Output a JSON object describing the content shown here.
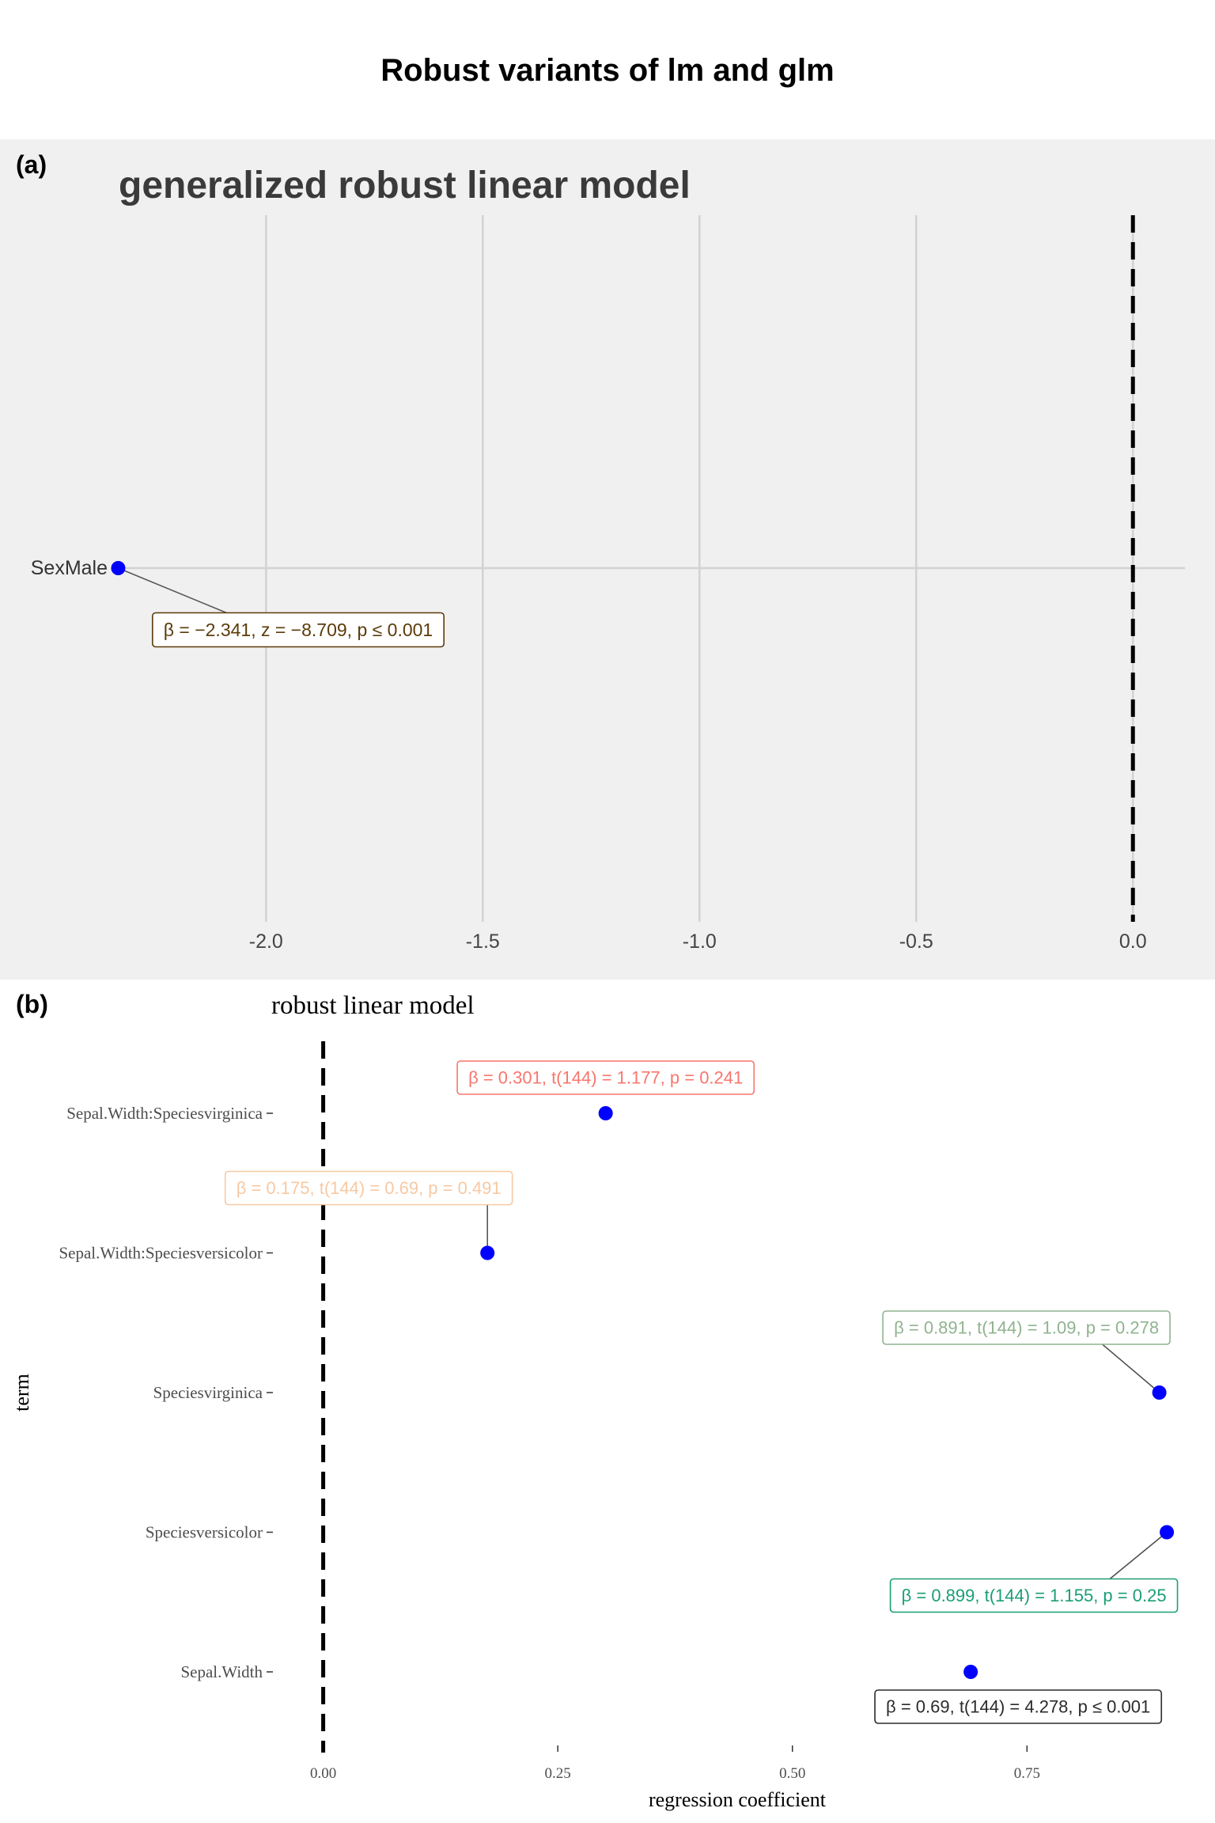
{
  "figure": {
    "title": "Robust variants of lm and glm"
  },
  "chart_data": [
    {
      "type": "scatter",
      "panel_tag": "(a)",
      "title": "generalized robust linear model",
      "xlabel": "",
      "ylabel": "",
      "xlim": [
        -2.34,
        0.12
      ],
      "x_ticks": [
        -2.0,
        -1.5,
        -1.0,
        -0.5,
        0.0
      ],
      "x_tick_labels": [
        "-2.0",
        "-1.5",
        "-1.0",
        "-0.5",
        "0.0"
      ],
      "reference_line": 0,
      "grid": true,
      "background": "#f0f0f0",
      "point_color": "#0000ff",
      "terms": [
        "SexMale"
      ],
      "points": [
        {
          "term": "SexMale",
          "estimate": -2.341,
          "label": "β = −2.341,  z = −8.709,  p ≤ 0.001",
          "label_color": "#5c3b0a"
        }
      ]
    },
    {
      "type": "scatter",
      "panel_tag": "(b)",
      "title": "robust linear model",
      "xlabel": "regression coefficient",
      "ylabel": "term",
      "xlim": [
        -0.03,
        0.92
      ],
      "x_ticks": [
        0.0,
        0.25,
        0.5,
        0.75
      ],
      "x_tick_labels": [
        "0.00",
        "0.25",
        "0.50",
        "0.75"
      ],
      "reference_line": 0,
      "grid": false,
      "point_color": "#0000ff",
      "terms": [
        "Sepal.Width:Speciesvirginica",
        "Sepal.Width:Speciesversicolor",
        "Speciesvirginica",
        "Speciesversicolor",
        "Sepal.Width"
      ],
      "points": [
        {
          "term": "Sepal.Width:Speciesvirginica",
          "estimate": 0.301,
          "label": "β = 0.301,  t(144) = 1.177,  p = 0.241",
          "label_color": "#f8766d"
        },
        {
          "term": "Sepal.Width:Speciesversicolor",
          "estimate": 0.175,
          "label": "β = 0.175,  t(144) = 0.69,  p = 0.491",
          "label_color": "#f7c9a3"
        },
        {
          "term": "Speciesvirginica",
          "estimate": 0.891,
          "label": "β = 0.891,  t(144) = 1.09,  p = 0.278",
          "label_color": "#8fb38f"
        },
        {
          "term": "Speciesversicolor",
          "estimate": 0.899,
          "label": "β = 0.899,  t(144) = 1.155,  p = 0.25",
          "label_color": "#1b9e77"
        },
        {
          "term": "Sepal.Width",
          "estimate": 0.69,
          "label": "β = 0.69,  t(144) = 4.278,  p ≤ 0.001",
          "label_color": "#2b2b2b"
        }
      ]
    }
  ]
}
